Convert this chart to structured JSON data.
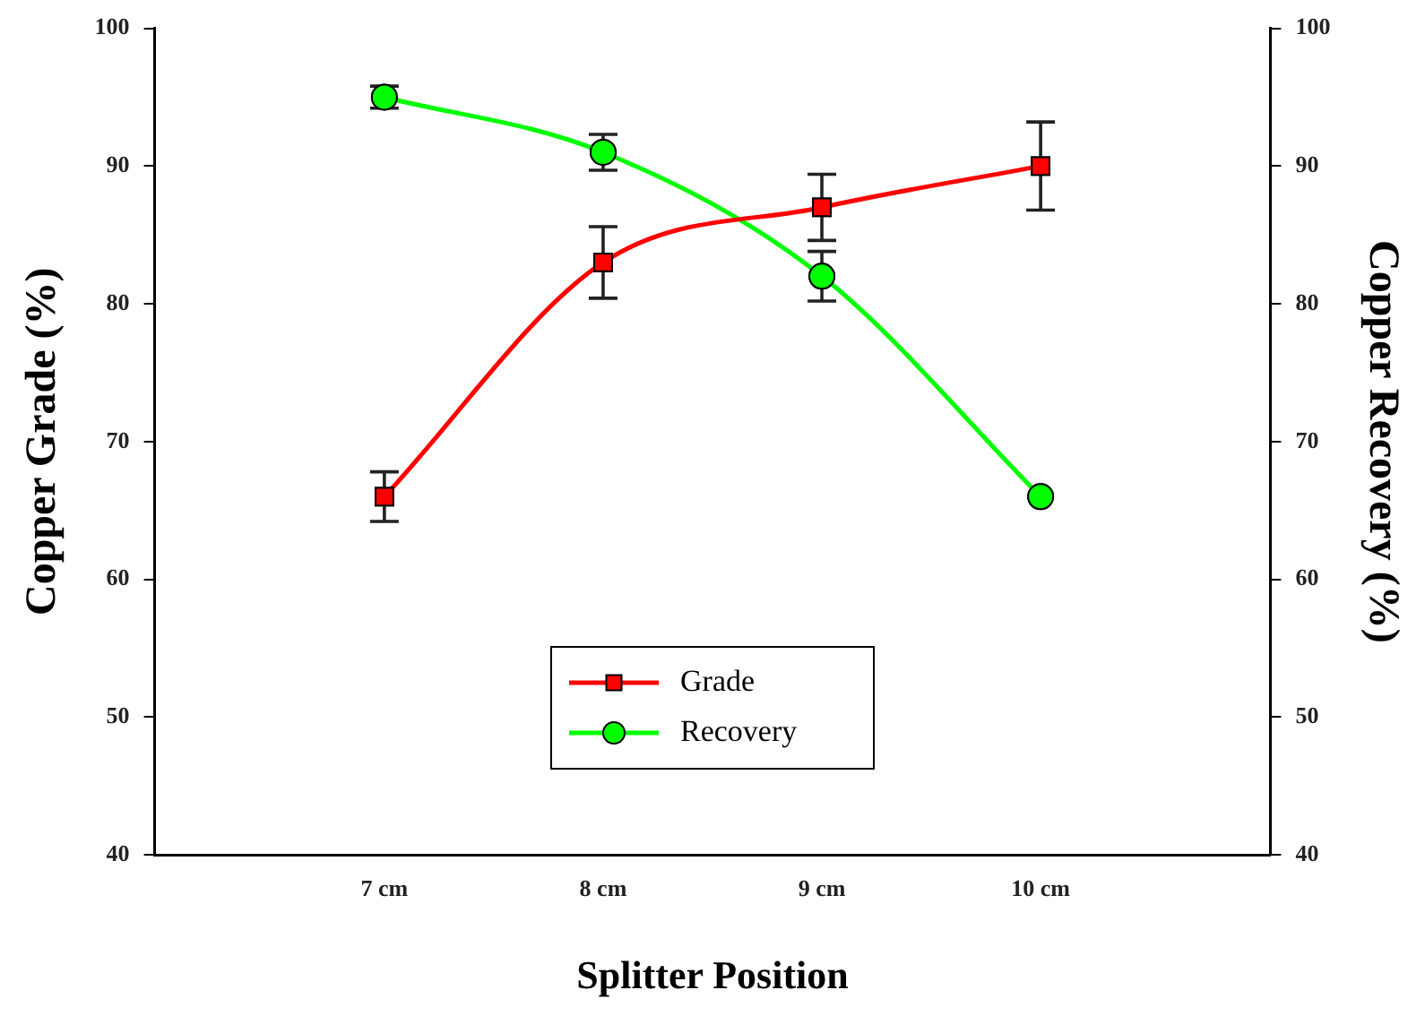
{
  "chart_data": {
    "type": "line",
    "xlabel": "Splitter Position",
    "ylabel": "Copper Grade (%)",
    "y2label": "Copper Recovery (%)",
    "categories": [
      "7 cm",
      "8 cm",
      "9 cm",
      "10 cm"
    ],
    "series": [
      {
        "name": "Grade",
        "color": "#ff0000",
        "marker": "square",
        "values": [
          66,
          83,
          87,
          90
        ],
        "errors": [
          1.8,
          2.6,
          2.4,
          3.2
        ]
      },
      {
        "name": "Recovery",
        "color": "#00ff00",
        "marker": "circle",
        "values": [
          95,
          91,
          82,
          66
        ],
        "errors": [
          0.8,
          1.3,
          1.8,
          null
        ]
      }
    ],
    "ylim": [
      40,
      100
    ],
    "yticks": [
      40,
      50,
      60,
      70,
      80,
      90,
      100
    ],
    "y2lim": [
      40,
      100
    ],
    "y2ticks": [
      40,
      50,
      60,
      70,
      80,
      90,
      100
    ],
    "grid": false,
    "legend": "bottom",
    "line_style": "solid"
  }
}
